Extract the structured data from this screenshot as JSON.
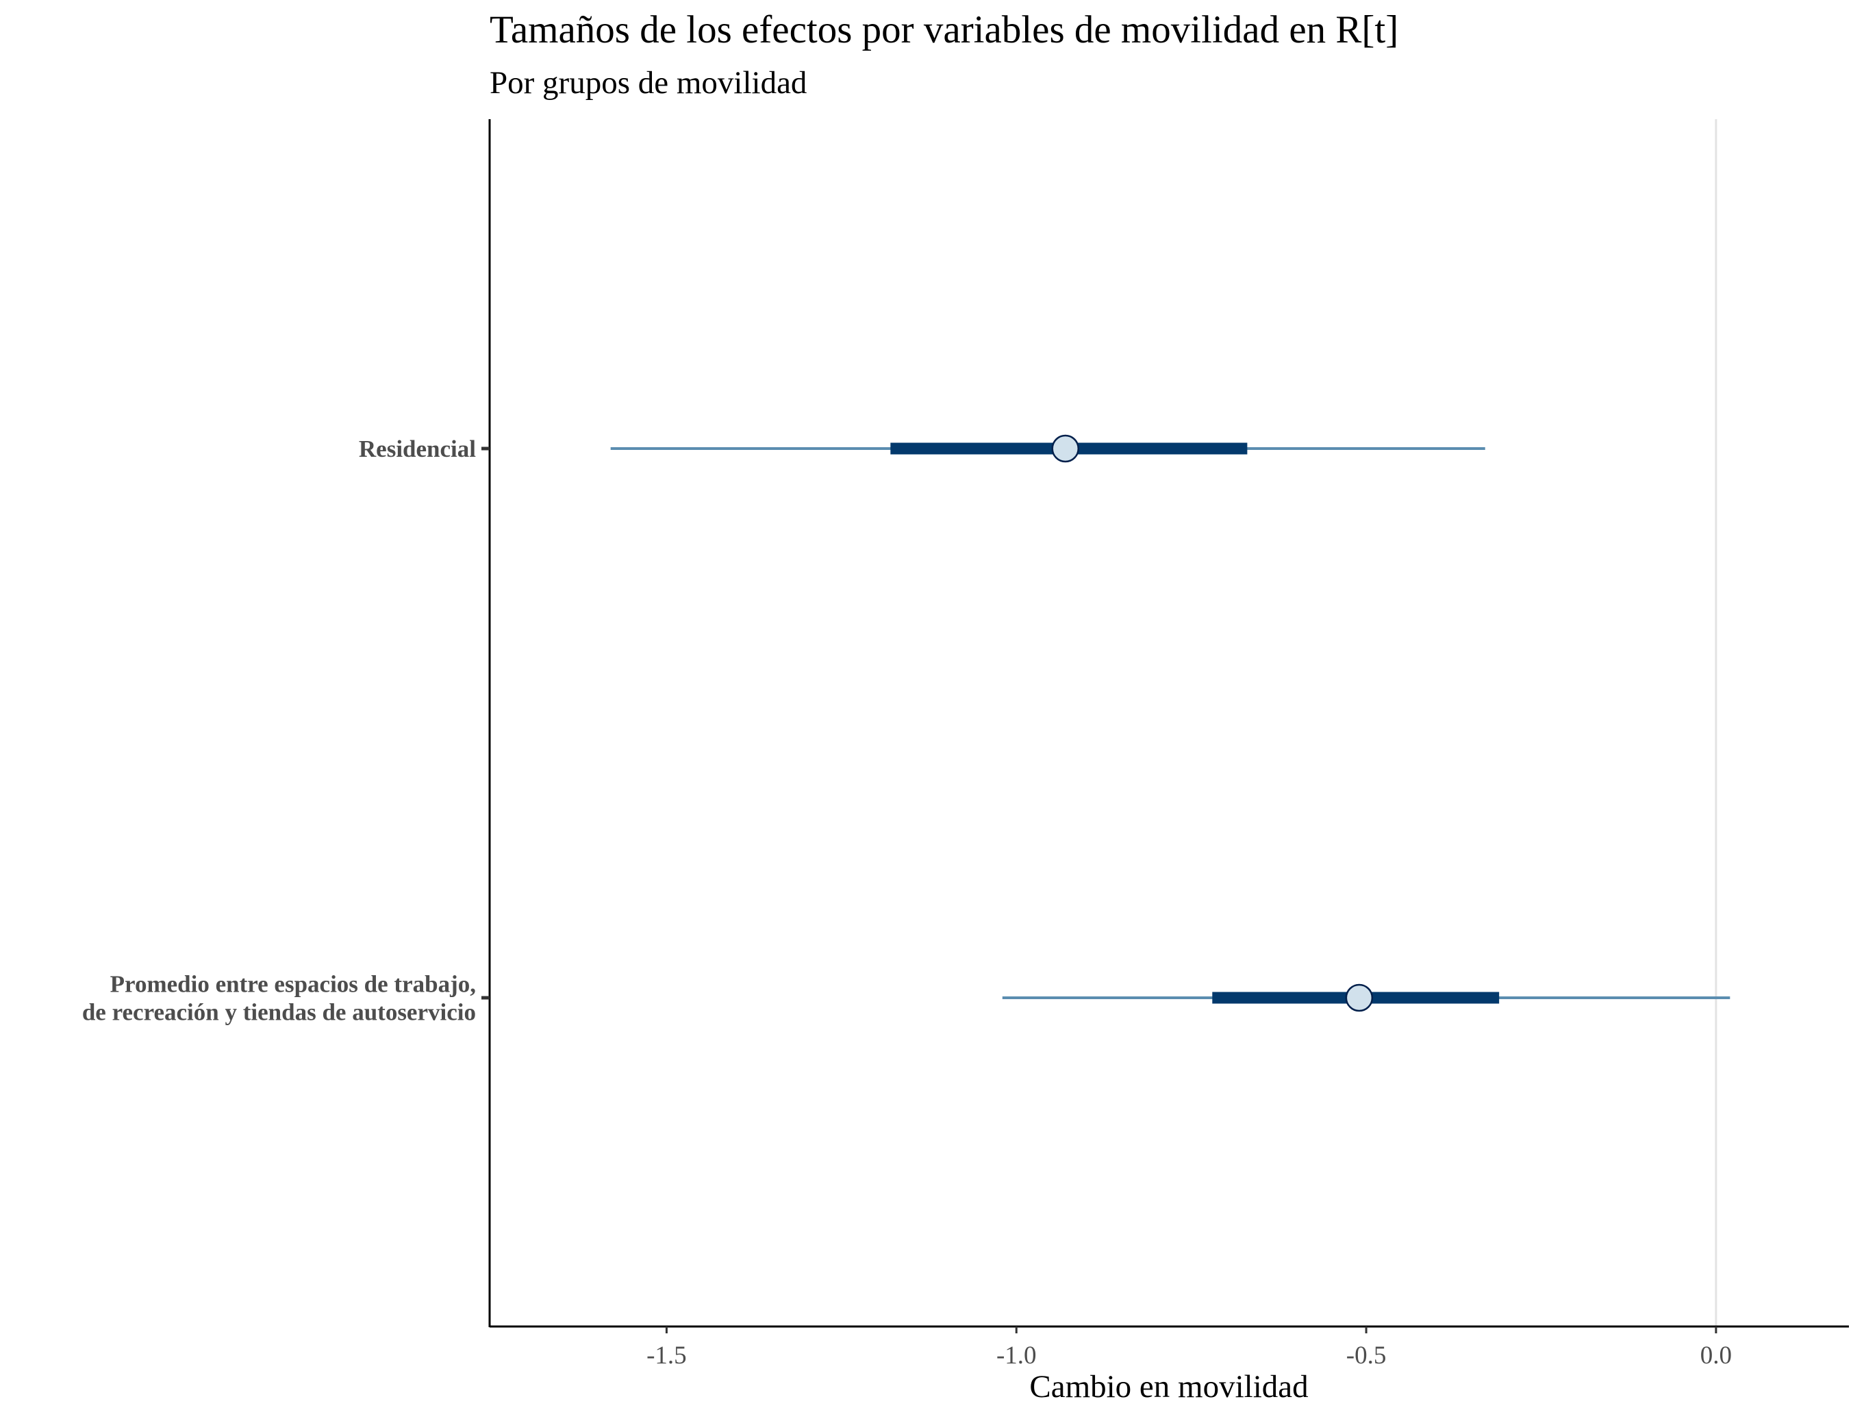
{
  "chart_data": {
    "type": "interval",
    "title": "Tamaños de los efectos por variables de movilidad en R[t]",
    "subtitle": "Por grupos de movilidad",
    "xlabel": "Cambio en movilidad",
    "ylabel": "",
    "xlim": [
      -1.75,
      0.19
    ],
    "reference_line": 0.0,
    "x_ticks": [
      -1.5,
      -1.0,
      -0.5,
      0.0
    ],
    "x_tick_labels": [
      "-1.5",
      "-1.0",
      "-0.5",
      "0.0"
    ],
    "grid": false,
    "series": [
      {
        "name": "Residencial",
        "label_lines": [
          "Residencial"
        ],
        "estimate": -0.93,
        "inner_interval": [
          -1.18,
          -0.67
        ],
        "outer_interval": [
          -1.58,
          -0.33
        ]
      },
      {
        "name": "Promedio entre espacios de trabajo, de recreación y tiendas de autoservicio",
        "label_lines": [
          "Promedio entre espacios de trabajo,",
          "de recreación y tiendas de autoservicio"
        ],
        "estimate": -0.51,
        "inner_interval": [
          -0.72,
          -0.31
        ],
        "outer_interval": [
          -1.02,
          0.02
        ]
      }
    ],
    "colors": {
      "outer_interval": "#5b8db0",
      "inner_interval": "#03396c",
      "point_fill": "#d1e1ec",
      "point_stroke": "#011f4b",
      "reference_line": "#e3e3e3",
      "axis": "#000000"
    }
  }
}
